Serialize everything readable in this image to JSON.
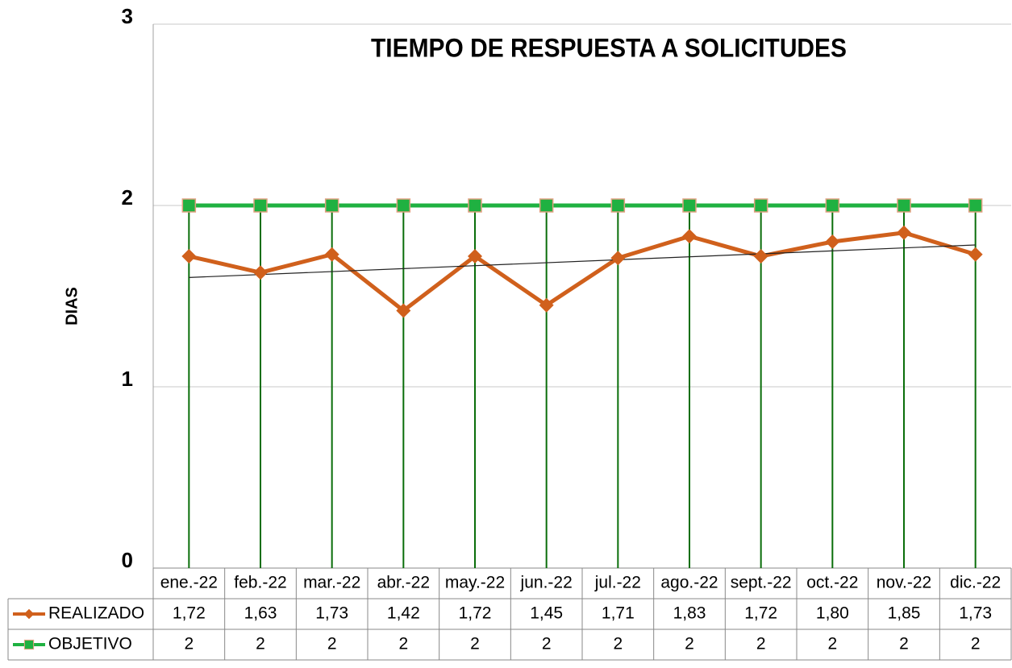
{
  "chart_data": {
    "type": "line",
    "title": "TIEMPO DE RESPUESTA A SOLICITUDES",
    "y_label": "DIAS",
    "categories": [
      "ene.-22",
      "feb.-22",
      "mar.-22",
      "abr.-22",
      "may.-22",
      "jun.-22",
      "jul.-22",
      "ago.-22",
      "sept.-22",
      "oct.-22",
      "nov.-22",
      "dic.-22"
    ],
    "series": [
      {
        "name": "REALIZADO",
        "color": "#d0601c",
        "marker": "diamond",
        "values": [
          1.72,
          1.63,
          1.73,
          1.42,
          1.72,
          1.45,
          1.71,
          1.83,
          1.72,
          1.8,
          1.85,
          1.73
        ],
        "value_labels": [
          "1,72",
          "1,63",
          "1,73",
          "1,42",
          "1,72",
          "1,45",
          "1,71",
          "1,83",
          "1,72",
          "1,80",
          "1,85",
          "1,73"
        ],
        "trendline": true
      },
      {
        "name": "OBJETIVO",
        "color": "#1fb141",
        "marker": "square",
        "values": [
          2,
          2,
          2,
          2,
          2,
          2,
          2,
          2,
          2,
          2,
          2,
          2
        ],
        "drop_lines": true
      }
    ],
    "ylim": [
      0,
      3
    ],
    "yticks": [
      0,
      1,
      2,
      3
    ],
    "grid": true
  }
}
